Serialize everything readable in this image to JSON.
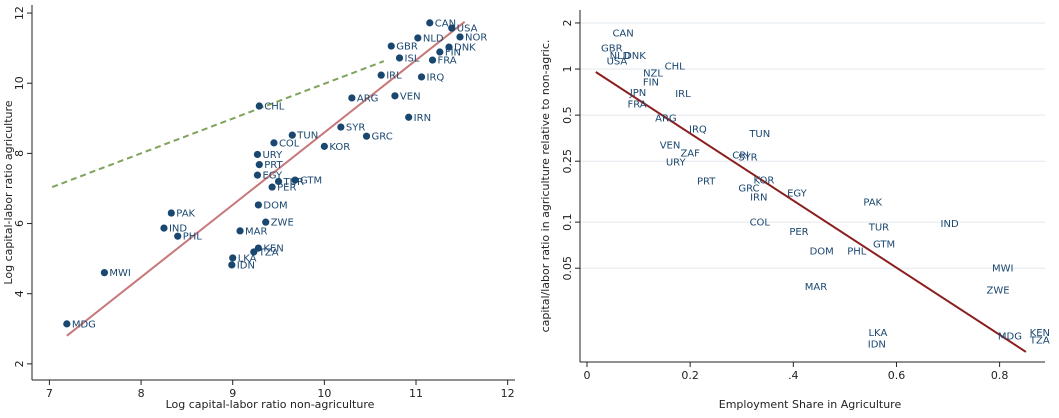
{
  "chart_data": [
    {
      "type": "scatter",
      "x_label": "Log capital-labor ratio non-agriculture",
      "y_label": "Log capital-labor ratio agriculture",
      "labels": [
        "MDG",
        "MWI",
        "PAK",
        "IND",
        "PHL",
        "MAR",
        "ZWE",
        "KEN",
        "TZA",
        "LKA",
        "IDN",
        "DOM",
        "EGY",
        "PER",
        "TUR",
        "GTM",
        "URY",
        "PRT",
        "COL",
        "TUN",
        "KOR",
        "SYR",
        "GRC",
        "ARG",
        "CHL",
        "VEN",
        "IRN",
        "IRQ",
        "IRL",
        "GBR",
        "ISL",
        "CAN",
        "USA",
        "NOR",
        "NLD",
        "DNK",
        "FIN",
        "FRA"
      ],
      "x": [
        7.19,
        7.6,
        8.33,
        8.25,
        8.4,
        9.08,
        9.36,
        9.28,
        9.23,
        9.0,
        8.99,
        9.28,
        9.27,
        9.43,
        9.5,
        9.68,
        9.27,
        9.29,
        9.45,
        9.65,
        10.0,
        10.18,
        10.46,
        10.3,
        9.29,
        10.77,
        10.92,
        11.06,
        10.62,
        10.73,
        10.82,
        11.15,
        11.39,
        11.48,
        11.02,
        11.36,
        11.26,
        11.18
      ],
      "values": [
        3.14,
        4.6,
        6.3,
        5.87,
        5.64,
        5.79,
        6.04,
        5.3,
        5.19,
        5.02,
        4.82,
        6.53,
        7.38,
        7.04,
        7.2,
        7.24,
        7.97,
        7.68,
        8.3,
        8.52,
        8.2,
        8.75,
        8.49,
        9.58,
        9.35,
        9.64,
        9.03,
        10.18,
        10.23,
        11.06,
        10.72,
        11.72,
        11.57,
        11.32,
        11.29,
        11.03,
        10.89,
        10.66
      ],
      "color": "#1a476f",
      "markers": true,
      "log_y": false,
      "grid": false,
      "xlim": [
        6.81,
        12.08
      ],
      "ylim": [
        1.54,
        12.23
      ],
      "xticks": [
        7,
        8,
        9,
        10,
        11,
        12
      ],
      "yticks": [
        2,
        4,
        6,
        8,
        10,
        12
      ],
      "fit_lines": [
        {
          "x": [
            7.19,
            11.53
          ],
          "values": [
            2.8,
            11.75
          ],
          "color": "#c87878",
          "dashed": false
        },
        {
          "x": [
            7.03,
            10.65
          ],
          "values": [
            7.04,
            10.63
          ],
          "color": "#7da35c",
          "dashed": true
        }
      ]
    },
    {
      "type": "scatter",
      "x_label": "Employment Share in Agriculture",
      "y_label": "capital/labor ratio in agriculture relative to non-agric.",
      "labels": [
        "CAN",
        "GBR",
        "NLD",
        "DNK",
        "USA",
        "CHL",
        "NZL",
        "FIN",
        "JPN",
        "IRL",
        "FRA",
        "ARG",
        "IRQ",
        "TUN",
        "VEN",
        "ZAF",
        "CRI",
        "SYR",
        "URY",
        "PRT",
        "KOR",
        "GRC",
        "IRN",
        "EGY",
        "PAK",
        "COL",
        "IND",
        "TUR",
        "PER",
        "GTM",
        "DOM",
        "PHL",
        "MWI",
        "ZWE",
        "MAR",
        "LKA",
        "IDN",
        "MDG",
        "KEN",
        "TZA"
      ],
      "x": [
        0.07,
        0.048,
        0.064,
        0.093,
        0.058,
        0.17,
        0.128,
        0.124,
        0.099,
        0.186,
        0.097,
        0.153,
        0.215,
        0.335,
        0.161,
        0.2,
        0.298,
        0.312,
        0.172,
        0.231,
        0.343,
        0.314,
        0.333,
        0.407,
        0.554,
        0.335,
        0.703,
        0.566,
        0.411,
        0.576,
        0.455,
        0.523,
        0.806,
        0.797,
        0.444,
        0.564,
        0.562,
        0.82,
        0.878,
        0.878
      ],
      "values": [
        1.72,
        1.37,
        1.23,
        1.23,
        1.13,
        1.05,
        0.94,
        0.82,
        0.7,
        0.69,
        0.59,
        0.48,
        0.405,
        0.38,
        0.318,
        0.283,
        0.274,
        0.266,
        0.247,
        0.186,
        0.188,
        0.167,
        0.146,
        0.155,
        0.135,
        0.1,
        0.098,
        0.093,
        0.087,
        0.072,
        0.065,
        0.065,
        0.05,
        0.036,
        0.038,
        0.019,
        0.016,
        0.018,
        0.019,
        0.017
      ],
      "color": "#1a476f",
      "markers": false,
      "log_y": true,
      "grid": true,
      "xlim": [
        -0.0136,
        0.888
      ],
      "ylim": [
        0.0122,
        2.43
      ],
      "xticks": [
        0,
        0.2,
        {
          "value": 0.4,
          "label": ".4"
        },
        0.6,
        0.8
      ],
      "yticks": [
        2,
        1,
        0.5,
        0.25,
        0.1,
        0.05
      ],
      "fit_lines": [
        {
          "x": [
            0.017,
            0.851
          ],
          "values": [
            0.956,
            0.0142
          ],
          "color": "#8b1e1e",
          "dashed": false
        }
      ]
    }
  ]
}
